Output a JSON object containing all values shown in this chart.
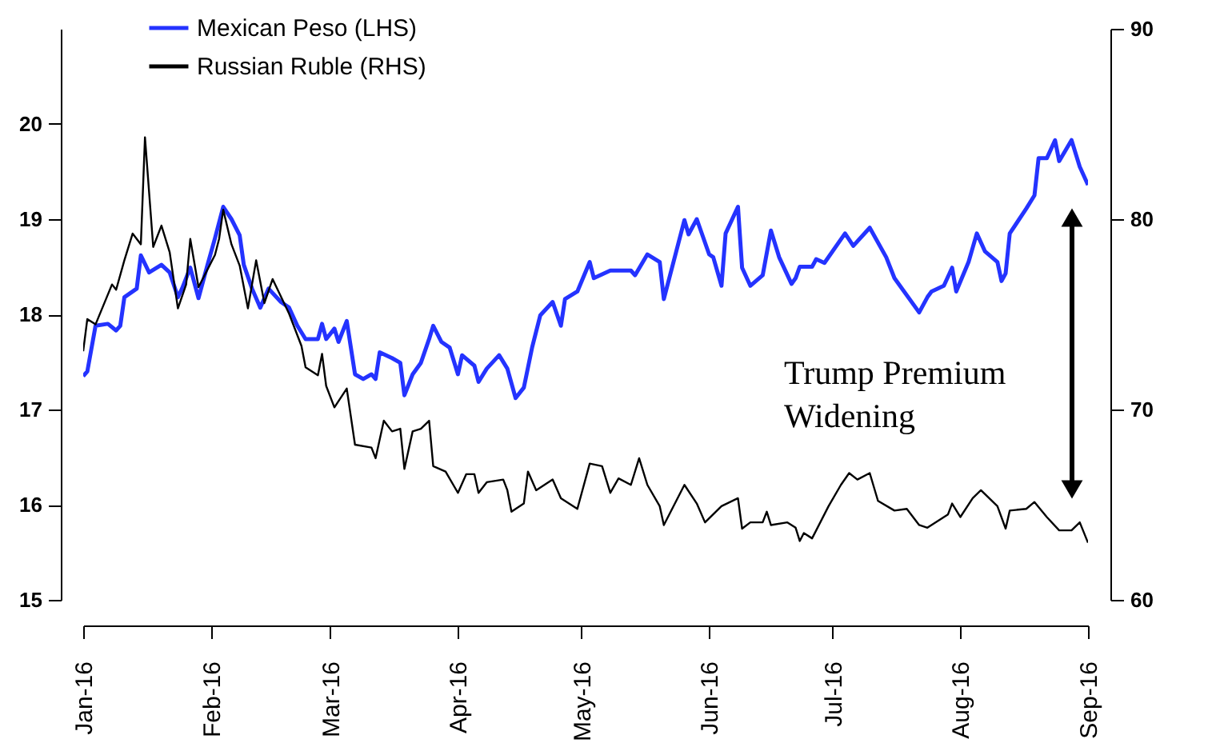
{
  "chart_data": {
    "type": "line",
    "annotations": [
      "Trump Premium Widening"
    ],
    "xlim": [
      "2016-01-01",
      "2016-09-01"
    ],
    "xticks": [
      {
        "value": "2016-01-01",
        "label": "Jan-16"
      },
      {
        "value": "2016-02-01",
        "label": "Feb-16"
      },
      {
        "value": "2016-03-01",
        "label": "Mar-16"
      },
      {
        "value": "2016-04-01",
        "label": "Apr-16"
      },
      {
        "value": "2016-05-01",
        "label": "May-16"
      },
      {
        "value": "2016-06-01",
        "label": "Jun-16"
      },
      {
        "value": "2016-07-01",
        "label": "Jul-16"
      },
      {
        "value": "2016-08-01",
        "label": "Aug-16"
      },
      {
        "value": "2016-09-01",
        "label": "Sep-16"
      }
    ],
    "ylim": [
      15,
      21
    ],
    "yticks": [
      15,
      16,
      17,
      18,
      19,
      20
    ],
    "y2lim": [
      60,
      90
    ],
    "y2ticks": [
      60,
      70,
      80,
      90
    ],
    "grid": false,
    "legend": "top left",
    "marker": "none",
    "line_style": "solid",
    "series": [
      {
        "name": "Mexican Peso (LHS)",
        "color": "#2433ff",
        "axis": "y",
        "x": [
          "2016-01-01",
          "2016-01-02",
          "2016-01-04",
          "2016-01-07",
          "2016-01-09",
          "2016-01-10",
          "2016-01-11",
          "2016-01-14",
          "2016-01-15",
          "2016-01-17",
          "2016-01-20",
          "2016-01-22",
          "2016-01-24",
          "2016-01-25",
          "2016-01-27",
          "2016-01-29",
          "2016-01-31",
          "2016-02-02",
          "2016-02-04",
          "2016-02-06",
          "2016-02-08",
          "2016-02-09",
          "2016-02-11",
          "2016-02-13",
          "2016-02-15",
          "2016-02-18",
          "2016-02-20",
          "2016-02-22",
          "2016-02-24",
          "2016-02-27",
          "2016-02-28",
          "2016-02-29",
          "2016-03-02",
          "2016-03-03",
          "2016-03-05",
          "2016-03-07",
          "2016-03-09",
          "2016-03-11",
          "2016-03-12",
          "2016-03-13",
          "2016-03-16",
          "2016-03-18",
          "2016-03-19",
          "2016-03-21",
          "2016-03-23",
          "2016-03-25",
          "2016-03-26",
          "2016-03-28",
          "2016-03-30",
          "2016-04-01",
          "2016-04-02",
          "2016-04-05",
          "2016-04-06",
          "2016-04-08",
          "2016-04-11",
          "2016-04-13",
          "2016-04-15",
          "2016-04-17",
          "2016-04-19",
          "2016-04-21",
          "2016-04-24",
          "2016-04-26",
          "2016-04-27",
          "2016-04-30",
          "2016-05-03",
          "2016-05-04",
          "2016-05-08",
          "2016-05-13",
          "2016-05-14",
          "2016-05-17",
          "2016-05-20",
          "2016-05-21",
          "2016-05-26",
          "2016-05-27",
          "2016-05-29",
          "2016-06-01",
          "2016-06-02",
          "2016-06-04",
          "2016-06-05",
          "2016-06-08",
          "2016-06-09",
          "2016-06-11",
          "2016-06-14",
          "2016-06-16",
          "2016-06-18",
          "2016-06-21",
          "2016-06-22",
          "2016-06-23",
          "2016-06-26",
          "2016-06-27",
          "2016-06-29",
          "2016-07-04",
          "2016-07-06",
          "2016-07-10",
          "2016-07-14",
          "2016-07-16",
          "2016-07-22",
          "2016-07-24",
          "2016-07-25",
          "2016-07-28",
          "2016-07-30",
          "2016-07-31",
          "2016-08-03",
          "2016-08-05",
          "2016-08-07",
          "2016-08-10",
          "2016-08-11",
          "2016-08-12",
          "2016-08-13",
          "2016-08-17",
          "2016-08-19",
          "2016-08-20",
          "2016-08-22",
          "2016-08-24",
          "2016-08-25",
          "2016-08-28",
          "2016-08-30",
          "2016-09-01"
        ],
        "values": [
          17.35,
          17.4,
          17.88,
          17.9,
          17.83,
          17.88,
          18.18,
          18.27,
          18.62,
          18.44,
          18.52,
          18.44,
          18.18,
          18.27,
          18.49,
          18.17,
          18.49,
          18.8,
          19.13,
          19.0,
          18.83,
          18.52,
          18.27,
          18.07,
          18.27,
          18.13,
          18.07,
          17.88,
          17.74,
          17.74,
          17.9,
          17.74,
          17.85,
          17.71,
          17.93,
          17.37,
          17.32,
          17.37,
          17.32,
          17.6,
          17.54,
          17.49,
          17.15,
          17.37,
          17.49,
          17.74,
          17.88,
          17.71,
          17.65,
          17.37,
          17.57,
          17.46,
          17.29,
          17.43,
          17.57,
          17.43,
          17.12,
          17.23,
          17.65,
          17.99,
          18.13,
          17.88,
          18.16,
          18.24,
          18.55,
          18.38,
          18.46,
          18.46,
          18.41,
          18.63,
          18.55,
          18.16,
          18.99,
          18.84,
          19.0,
          18.63,
          18.6,
          18.3,
          18.85,
          19.13,
          18.49,
          18.3,
          18.41,
          18.88,
          18.6,
          18.32,
          18.38,
          18.5,
          18.5,
          18.58,
          18.54,
          18.85,
          18.72,
          18.91,
          18.6,
          18.38,
          18.02,
          18.18,
          18.24,
          18.3,
          18.49,
          18.24,
          18.55,
          18.85,
          18.66,
          18.55,
          18.35,
          18.43,
          18.85,
          19.11,
          19.25,
          19.64,
          19.64,
          19.83,
          19.61,
          19.83,
          19.55,
          19.36
        ]
      },
      {
        "name": "Russian Ruble (RHS)",
        "color": "#000000",
        "axis": "y2",
        "x": [
          "2016-01-01",
          "2016-01-02",
          "2016-01-04",
          "2016-01-08",
          "2016-01-09",
          "2016-01-11",
          "2016-01-13",
          "2016-01-15",
          "2016-01-16",
          "2016-01-18",
          "2016-01-20",
          "2016-01-22",
          "2016-01-24",
          "2016-01-26",
          "2016-01-27",
          "2016-01-29",
          "2016-02-02",
          "2016-02-03",
          "2016-02-04",
          "2016-02-06",
          "2016-02-08",
          "2016-02-10",
          "2016-02-12",
          "2016-02-14",
          "2016-02-16",
          "2016-02-20",
          "2016-02-23",
          "2016-02-24",
          "2016-02-27",
          "2016-02-28",
          "2016-02-29",
          "2016-03-02",
          "2016-03-05",
          "2016-03-07",
          "2016-03-11",
          "2016-03-12",
          "2016-03-14",
          "2016-03-16",
          "2016-03-18",
          "2016-03-19",
          "2016-03-21",
          "2016-03-23",
          "2016-03-25",
          "2016-03-26",
          "2016-03-29",
          "2016-04-01",
          "2016-04-03",
          "2016-04-05",
          "2016-04-06",
          "2016-04-08",
          "2016-04-12",
          "2016-04-13",
          "2016-04-14",
          "2016-04-17",
          "2016-04-18",
          "2016-04-20",
          "2016-04-24",
          "2016-04-26",
          "2016-04-30",
          "2016-05-03",
          "2016-05-06",
          "2016-05-08",
          "2016-05-10",
          "2016-05-13",
          "2016-05-15",
          "2016-05-17",
          "2016-05-20",
          "2016-05-21",
          "2016-05-26",
          "2016-05-29",
          "2016-05-31",
          "2016-06-04",
          "2016-06-08",
          "2016-06-09",
          "2016-06-11",
          "2016-06-14",
          "2016-06-15",
          "2016-06-16",
          "2016-06-20",
          "2016-06-22",
          "2016-06-23",
          "2016-06-24",
          "2016-06-26",
          "2016-06-30",
          "2016-07-03",
          "2016-07-05",
          "2016-07-07",
          "2016-07-10",
          "2016-07-12",
          "2016-07-16",
          "2016-07-19",
          "2016-07-22",
          "2016-07-24",
          "2016-07-29",
          "2016-07-30",
          "2016-08-01",
          "2016-08-04",
          "2016-08-06",
          "2016-08-10",
          "2016-08-12",
          "2016-08-13",
          "2016-08-17",
          "2016-08-19",
          "2016-08-22",
          "2016-08-25",
          "2016-08-28",
          "2016-08-30",
          "2016-09-01"
        ],
        "values": [
          73.06,
          74.75,
          74.47,
          76.57,
          76.29,
          77.84,
          79.24,
          78.68,
          84.3,
          78.54,
          79.66,
          78.26,
          75.31,
          76.57,
          78.96,
          76.43,
          78.12,
          78.96,
          80.5,
          78.68,
          77.56,
          75.31,
          77.84,
          75.59,
          76.85,
          75.03,
          73.34,
          72.22,
          71.8,
          72.92,
          71.24,
          70.11,
          71.1,
          68.15,
          68.0,
          67.44,
          69.41,
          68.85,
          68.99,
          66.88,
          68.85,
          68.99,
          69.41,
          67.02,
          66.74,
          65.62,
          66.6,
          66.6,
          65.62,
          66.18,
          66.32,
          65.76,
          64.63,
          65.06,
          66.74,
          65.76,
          66.32,
          65.34,
          64.78,
          67.16,
          67.02,
          65.62,
          66.38,
          66.04,
          67.44,
          66.04,
          64.92,
          63.93,
          66.04,
          65.06,
          64.07,
          64.92,
          65.34,
          63.74,
          64.07,
          64.07,
          64.63,
          63.93,
          64.07,
          63.79,
          63.09,
          63.51,
          63.23,
          64.92,
          66.04,
          66.66,
          66.32,
          66.66,
          65.2,
          64.69,
          64.78,
          63.93,
          63.79,
          64.49,
          65.06,
          64.35,
          65.34,
          65.76,
          64.92,
          63.74,
          64.69,
          64.78,
          65.14,
          64.35,
          63.65,
          63.65,
          64.07,
          63.0
        ]
      }
    ]
  }
}
